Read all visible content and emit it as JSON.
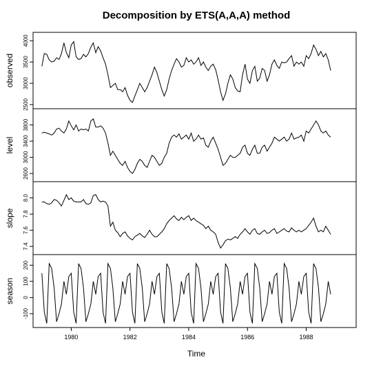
{
  "chart_data": {
    "type": "line",
    "title": "Decomposition by ETS(A,A,A) method",
    "xlabel": "Time",
    "xlim": [
      1978.7,
      1989.7
    ],
    "x_ticks": [
      "1980",
      "1982",
      "1984",
      "1986",
      "1988"
    ],
    "x_tick_values": [
      1980,
      1982,
      1984,
      1986,
      1988
    ],
    "x_start": 1979.0,
    "x_step": 0.0833333,
    "panels": [
      {
        "name": "observed",
        "ylabel": "observed",
        "ylim": [
          2500,
          4100
        ],
        "y_ticks": [
          "2500",
          "3000",
          "3500",
          "4000"
        ],
        "y_tick_values": [
          2500,
          3000,
          3500,
          4000
        ],
        "values": [
          3400,
          3700,
          3680,
          3550,
          3500,
          3520,
          3600,
          3560,
          3700,
          3950,
          3720,
          3600,
          3900,
          3980,
          3620,
          3560,
          3580,
          3680,
          3620,
          3700,
          3850,
          3950,
          3720,
          3860,
          3760,
          3600,
          3450,
          3200,
          2900,
          2950,
          3000,
          2850,
          2850,
          2800,
          2900,
          2720,
          2600,
          2550,
          2700,
          2850,
          3000,
          2900,
          2800,
          2900,
          3050,
          3200,
          3380,
          3250,
          3050,
          2850,
          2700,
          2850,
          3100,
          3300,
          3450,
          3580,
          3500,
          3380,
          3420,
          3600,
          3500,
          3550,
          3450,
          3500,
          3600,
          3420,
          3500,
          3380,
          3300,
          3400,
          3450,
          3320,
          3080,
          2800,
          2600,
          2750,
          3000,
          3200,
          3100,
          2900,
          2820,
          2800,
          3200,
          3450,
          3100,
          3000,
          3300,
          3400,
          3050,
          3120,
          3350,
          3300,
          3050,
          3200,
          3450,
          3550,
          3420,
          3350,
          3500,
          3480,
          3500,
          3580,
          3650,
          3400,
          3500,
          3450,
          3500,
          3400,
          3650,
          3580,
          3700,
          3900,
          3800,
          3650,
          3750,
          3620,
          3700,
          3550,
          3300
        ]
      },
      {
        "name": "level",
        "ylabel": "level",
        "ylim": [
          2500,
          4100
        ],
        "y_ticks": [
          "2600",
          "3000",
          "3400",
          "3800"
        ],
        "y_tick_values": [
          2600,
          3000,
          3400,
          3800
        ],
        "values": [
          3600,
          3620,
          3600,
          3580,
          3550,
          3600,
          3700,
          3720,
          3650,
          3600,
          3700,
          3900,
          3780,
          3680,
          3800,
          3650,
          3700,
          3680,
          3700,
          3650,
          3900,
          3950,
          3750,
          3750,
          3780,
          3720,
          3600,
          3350,
          3050,
          3150,
          3050,
          2950,
          2850,
          2800,
          2900,
          2750,
          2650,
          2600,
          2700,
          2850,
          2950,
          2900,
          2800,
          2750,
          2900,
          3050,
          3000,
          2900,
          2800,
          2850,
          3000,
          3100,
          3350,
          3500,
          3550,
          3500,
          3580,
          3450,
          3500,
          3550,
          3450,
          3600,
          3400,
          3450,
          3550,
          3450,
          3480,
          3300,
          3250,
          3400,
          3500,
          3350,
          3200,
          3000,
          2800,
          2850,
          2950,
          3050,
          3000,
          3000,
          3050,
          3100,
          3250,
          3300,
          3100,
          3050,
          3200,
          3300,
          3100,
          3100,
          3250,
          3300,
          3150,
          3250,
          3350,
          3500,
          3450,
          3400,
          3450,
          3500,
          3400,
          3450,
          3600,
          3450,
          3480,
          3500,
          3550,
          3400,
          3650,
          3600,
          3700,
          3800,
          3900,
          3800,
          3650,
          3600,
          3650,
          3550,
          3500
        ]
      },
      {
        "name": "slope",
        "ylabel": "slope",
        "ylim": [
          7.35,
          8.15
        ],
        "y_ticks": [
          "7.4",
          "7.6",
          "7.8",
          "8.0"
        ],
        "y_tick_values": [
          7.4,
          7.6,
          7.8,
          8.0
        ],
        "values": [
          7.95,
          7.95,
          7.93,
          7.92,
          7.94,
          7.98,
          7.97,
          7.94,
          7.9,
          7.97,
          8.04,
          7.98,
          8.0,
          7.96,
          7.95,
          7.95,
          7.95,
          7.98,
          7.93,
          7.92,
          7.94,
          8.03,
          8.04,
          7.98,
          7.95,
          7.96,
          7.95,
          7.9,
          7.65,
          7.7,
          7.6,
          7.57,
          7.52,
          7.56,
          7.58,
          7.53,
          7.5,
          7.48,
          7.52,
          7.54,
          7.56,
          7.53,
          7.51,
          7.55,
          7.6,
          7.55,
          7.52,
          7.52,
          7.55,
          7.58,
          7.62,
          7.68,
          7.72,
          7.75,
          7.78,
          7.74,
          7.72,
          7.76,
          7.73,
          7.76,
          7.78,
          7.72,
          7.75,
          7.72,
          7.7,
          7.68,
          7.66,
          7.62,
          7.65,
          7.6,
          7.58,
          7.55,
          7.45,
          7.38,
          7.42,
          7.47,
          7.49,
          7.48,
          7.5,
          7.52,
          7.5,
          7.55,
          7.58,
          7.62,
          7.58,
          7.55,
          7.6,
          7.62,
          7.56,
          7.55,
          7.58,
          7.6,
          7.56,
          7.57,
          7.6,
          7.62,
          7.56,
          7.58,
          7.6,
          7.62,
          7.59,
          7.58,
          7.63,
          7.6,
          7.58,
          7.6,
          7.58,
          7.6,
          7.62,
          7.66,
          7.7,
          7.75,
          7.65,
          7.58,
          7.6,
          7.58,
          7.65,
          7.6,
          7.55
        ]
      },
      {
        "name": "season",
        "ylabel": "season",
        "ylim": [
          -160,
          240
        ],
        "y_ticks": [
          "-100",
          "0",
          "100",
          "200"
        ],
        "y_tick_values": [
          -100,
          0,
          100,
          200
        ],
        "season_pattern": [
          150,
          -90,
          -160,
          210,
          180,
          60,
          -150,
          -100,
          -40,
          100,
          20,
          130
        ],
        "values": []
      }
    ]
  }
}
